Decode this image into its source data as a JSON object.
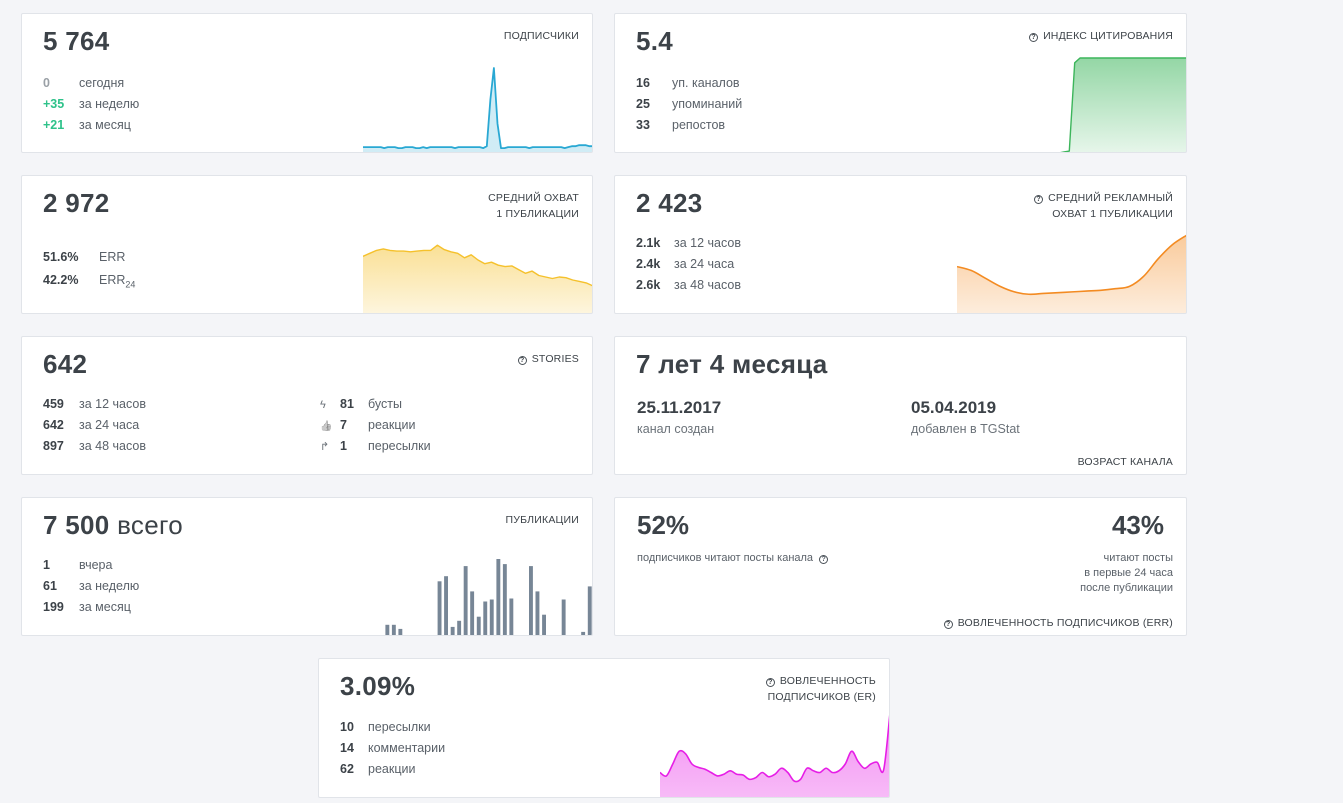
{
  "colors": {
    "subscribers": "#29a8d3",
    "citation": "#3cb55b",
    "reach": "#f5c12c",
    "ad_reach": "#f38b22",
    "posts": "#778696",
    "er": "#e61ee6",
    "green_text": "#2ec28a"
  },
  "subscribers": {
    "value": "5 764",
    "label": "ПОДПИСЧИКИ",
    "rows": [
      {
        "v": "0",
        "t": "сегодня"
      },
      {
        "v": "+35",
        "t": "за неделю"
      },
      {
        "v": "+21",
        "t": "за месяц"
      }
    ],
    "series": [
      6,
      6,
      6,
      6,
      6,
      6,
      5,
      6,
      6,
      6,
      5,
      5,
      6,
      6,
      6,
      5,
      5,
      6,
      5,
      6,
      6,
      6,
      6,
      6,
      6,
      6,
      5,
      6,
      6,
      6,
      6,
      6,
      6,
      6,
      5,
      7,
      55,
      87,
      30,
      5,
      5,
      6,
      6,
      6,
      6,
      6,
      6,
      5,
      6,
      6,
      6,
      6,
      6,
      6,
      6,
      6,
      6,
      5,
      6,
      7,
      7,
      8,
      8,
      8,
      7,
      7
    ]
  },
  "citation": {
    "value": "5.4",
    "label": "ИНДЕКС ЦИТИРОВАНИЯ",
    "icon": "question-circle-icon",
    "rows": [
      {
        "v": "16",
        "t": "уп. каналов"
      },
      {
        "v": "25",
        "t": "упоминаний"
      },
      {
        "v": "33",
        "t": "репостов"
      }
    ],
    "series": [
      0,
      0,
      0,
      0,
      0,
      0,
      0,
      0,
      0,
      0,
      0,
      0,
      0,
      0,
      0,
      0,
      0,
      0,
      0,
      0,
      1,
      2,
      95,
      100,
      100,
      100,
      100,
      100,
      100,
      100,
      100,
      100,
      100,
      100,
      100,
      100,
      100,
      100,
      100,
      100,
      100,
      100,
      100,
      100
    ]
  },
  "reach": {
    "value": "2 972",
    "label_line1": "СРЕДНИЙ ОХВАТ",
    "label_line2": "1 ПУБЛИКАЦИИ",
    "rows": [
      {
        "v": "51.6%",
        "t": "ERR"
      },
      {
        "v": "42.2%",
        "t": "ERR",
        "sub": "24"
      }
    ],
    "series": [
      78,
      82,
      86,
      88,
      86,
      85,
      85,
      84,
      85,
      86,
      86,
      93,
      87,
      84,
      82,
      76,
      80,
      73,
      68,
      70,
      66,
      64,
      65,
      60,
      55,
      58,
      52,
      50,
      48,
      50,
      49,
      46,
      44,
      42,
      38
    ]
  },
  "ad_reach": {
    "value": "2 423",
    "label_line1": "СРЕДНИЙ РЕКЛАМНЫЙ",
    "label_line2": "ОХВАТ 1 ПУБЛИКАЦИИ",
    "icon": "question-circle-icon",
    "rows": [
      {
        "v": "2.1k",
        "t": "за 12 часов"
      },
      {
        "v": "2.4k",
        "t": "за 24 часа"
      },
      {
        "v": "2.6k",
        "t": "за 48 часов"
      }
    ],
    "series": [
      60,
      55,
      45,
      35,
      28,
      25,
      26,
      27,
      28,
      29,
      30,
      32,
      35,
      48,
      70,
      88,
      100
    ]
  },
  "stories": {
    "value": "642",
    "label": "STORIES",
    "icon": "question-circle-icon",
    "rows": [
      {
        "v": "459",
        "t": "за 12 часов"
      },
      {
        "v": "642",
        "t": "за 24 часа"
      },
      {
        "v": "897",
        "t": "за 48 часов"
      }
    ],
    "rows_right": [
      {
        "icon": "lightning-icon",
        "glyph": "ϟ",
        "v": "81",
        "t": "бусты"
      },
      {
        "icon": "thumbs-up-icon",
        "glyph": "👍",
        "v": "7",
        "t": "реакции"
      },
      {
        "icon": "forward-arrow-icon",
        "glyph": "↱",
        "v": "1",
        "t": "пересылки"
      }
    ]
  },
  "age": {
    "value": "7 лет 4 месяца",
    "created_date": "25.11.2017",
    "created_label": "канал создан",
    "added_date": "05.04.2019",
    "added_label": "добавлен в TGStat",
    "label": "ВОЗРАСТ КАНАЛА"
  },
  "posts": {
    "value": "7 500",
    "suffix": "всего",
    "label": "ПУБЛИКАЦИИ",
    "rows": [
      {
        "v": "1",
        "t": "вчера"
      },
      {
        "v": "61",
        "t": "за неделю"
      },
      {
        "v": "199",
        "t": "за месяц"
      }
    ],
    "bars": [
      1,
      1,
      12,
      12,
      8,
      1,
      1,
      1,
      1,
      1,
      55,
      60,
      10,
      16,
      70,
      45,
      20,
      35,
      37,
      77,
      72,
      38,
      1,
      1,
      70,
      45,
      22,
      1,
      1,
      37,
      1,
      1,
      5,
      50
    ]
  },
  "err": {
    "left_value": "52%",
    "left_note": "подписчиков читают посты канала",
    "right_value": "43%",
    "right_note_1": "читают посты",
    "right_note_2": "в первые 24 часа",
    "right_note_3": "после публикации",
    "label": "ВОВЛЕЧЕННОСТЬ ПОДПИСЧИКОВ (ERR)",
    "icon": "question-circle-icon"
  },
  "er": {
    "value": "3.09%",
    "label_line1": "ВОВЛЕЧЕННОСТЬ",
    "label_line2": "ПОДПИСЧИКОВ (ER)",
    "icon": "question-circle-icon",
    "rows": [
      {
        "v": "10",
        "t": "пересылки"
      },
      {
        "v": "14",
        "t": "комментарии"
      },
      {
        "v": "62",
        "t": "реакции"
      }
    ],
    "series": [
      30,
      26,
      40,
      55,
      52,
      40,
      36,
      34,
      30,
      26,
      28,
      32,
      28,
      27,
      22,
      24,
      30,
      25,
      28,
      35,
      30,
      20,
      22,
      35,
      32,
      30,
      35,
      30,
      32,
      40,
      55,
      43,
      35,
      40,
      42,
      33,
      100
    ]
  }
}
